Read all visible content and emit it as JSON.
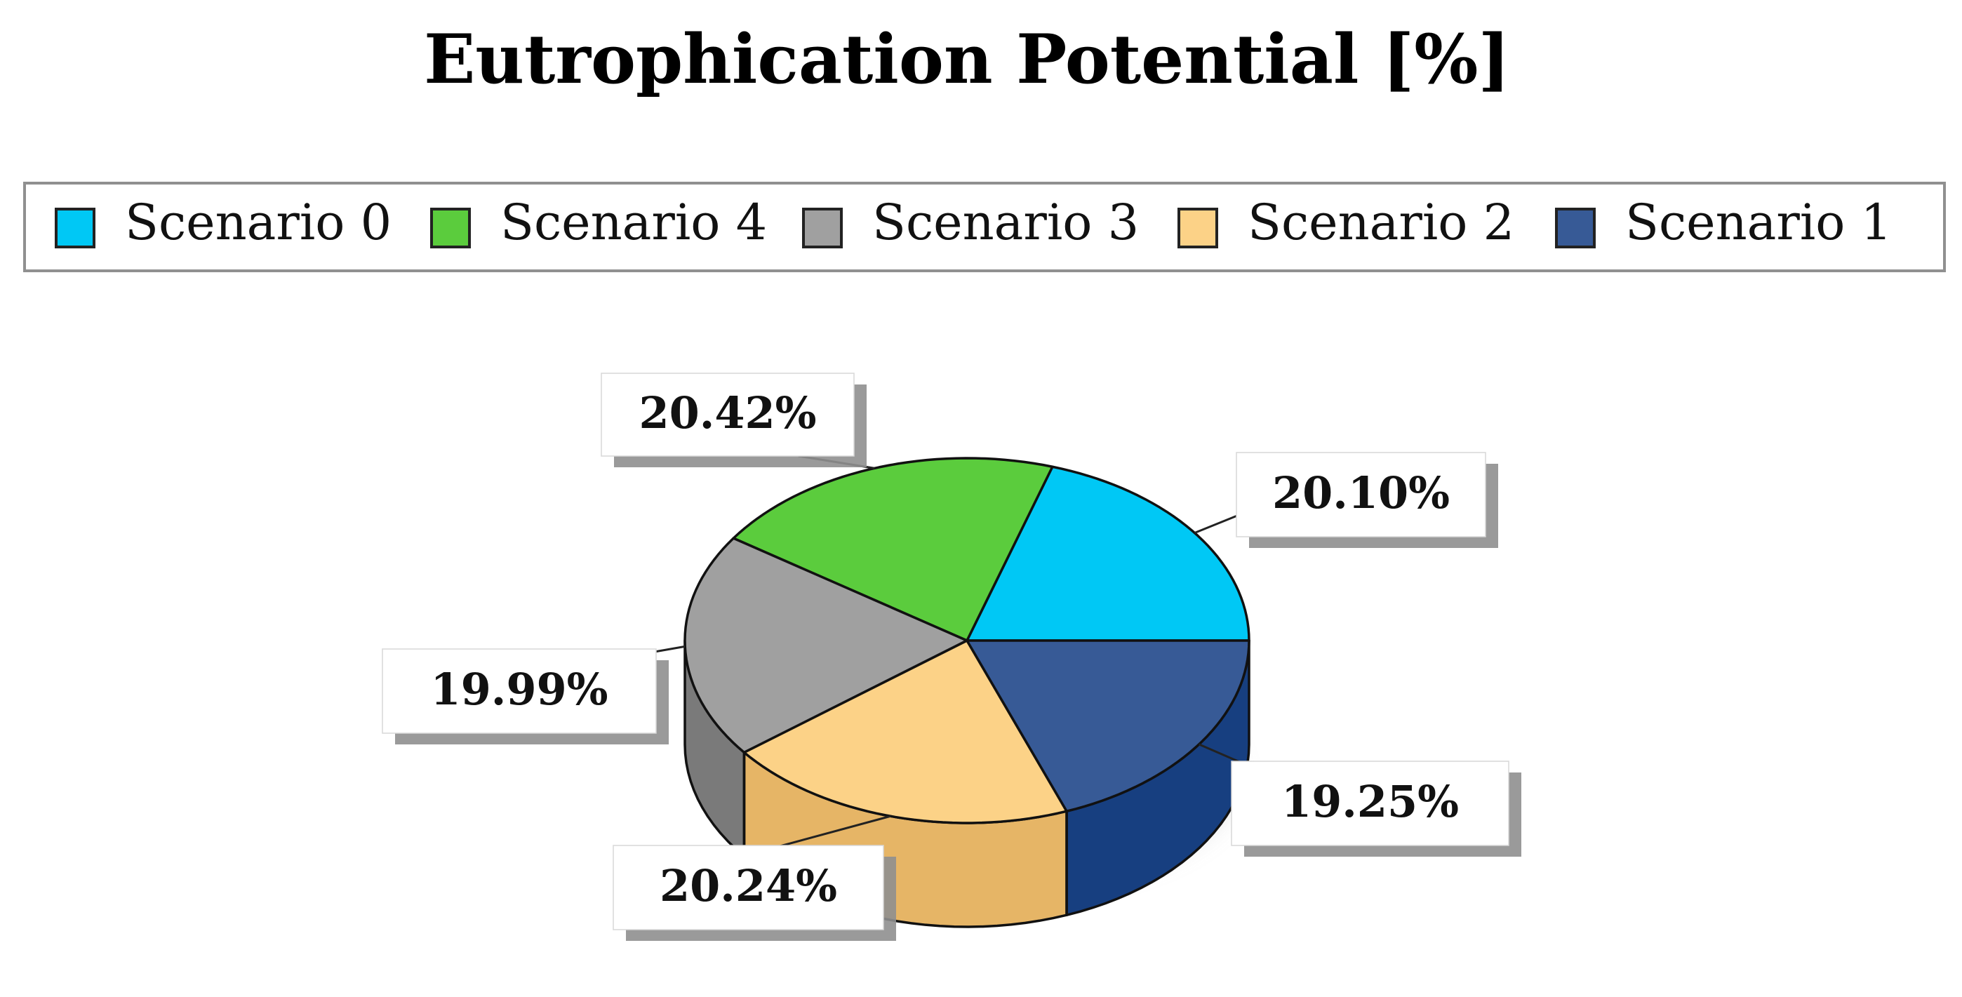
{
  "chart_data": {
    "type": "pie",
    "title": "Eutrophication Potential [%]",
    "legend": {
      "placement": "top",
      "entries": [
        {
          "label": "Scenario 0",
          "color": "#00C8F5"
        },
        {
          "label": "Scenario 4",
          "color": "#5BCC3D"
        },
        {
          "label": "Scenario 3",
          "color": "#A0A0A0"
        },
        {
          "label": "Scenario 2",
          "color": "#FCD287"
        },
        {
          "label": "Scenario 1",
          "color": "#375A96"
        }
      ]
    },
    "slices": [
      {
        "name": "Scenario 0",
        "value": 20.1,
        "label": "20.10%",
        "color": "#00C8F5",
        "side_color": "#0098C0"
      },
      {
        "name": "Scenario 4",
        "value": 20.42,
        "label": "20.42%",
        "color": "#5BCC3D",
        "side_color": "#3E9A28"
      },
      {
        "name": "Scenario 3",
        "value": 19.99,
        "label": "19.99%",
        "color": "#A0A0A0",
        "side_color": "#7A7A7A"
      },
      {
        "name": "Scenario 2",
        "value": 20.24,
        "label": "20.24%",
        "color": "#FCD287",
        "side_color": "#E6B566"
      },
      {
        "name": "Scenario 1",
        "value": 19.25,
        "label": "19.25%",
        "color": "#375A96",
        "side_color": "#173F80"
      }
    ],
    "three_d": true
  }
}
